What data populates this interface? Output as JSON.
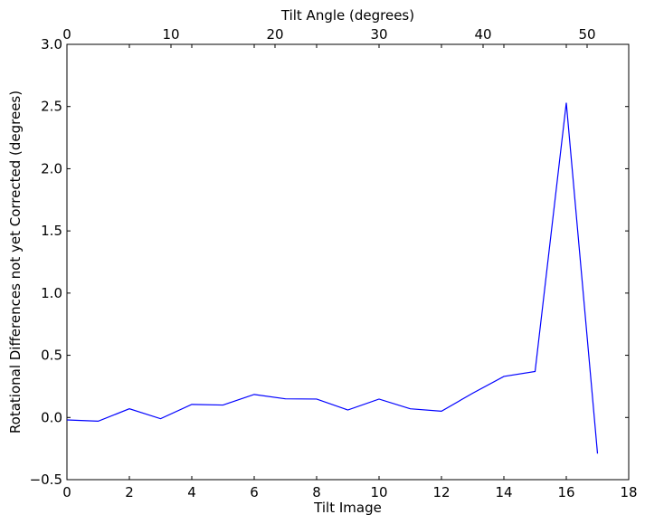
{
  "chart_data": {
    "type": "line",
    "xlabel": "Tilt Image",
    "x2label": "Tilt Angle (degrees)",
    "ylabel": "Rotational Differences not yet Corrected (degrees)",
    "xlim": [
      0,
      18
    ],
    "x2lim": [
      0,
      54
    ],
    "ylim": [
      -0.5,
      3.0
    ],
    "grid": false,
    "line_color": "#0000ff",
    "x_ticks": [
      0,
      2,
      4,
      6,
      8,
      10,
      12,
      14,
      16,
      18
    ],
    "x_tick_labels": [
      "0",
      "2",
      "4",
      "6",
      "8",
      "10",
      "12",
      "14",
      "16",
      "18"
    ],
    "x2_ticks": [
      0,
      10,
      20,
      30,
      40,
      50
    ],
    "x2_tick_labels": [
      "0",
      "10",
      "20",
      "30",
      "40",
      "50"
    ],
    "y_ticks": [
      -0.5,
      0.0,
      0.5,
      1.0,
      1.5,
      2.0,
      2.5,
      3.0
    ],
    "y_tick_labels": [
      "−0.5",
      "0.0",
      "0.5",
      "1.0",
      "1.5",
      "2.0",
      "2.5",
      "3.0"
    ],
    "series": [
      {
        "x": [
          0,
          1,
          2,
          3,
          4,
          5,
          6,
          7,
          8,
          9,
          10,
          11,
          12,
          13,
          14,
          15,
          16,
          17
        ],
        "values": [
          -0.02,
          -0.03,
          0.07,
          -0.01,
          0.105,
          0.1,
          0.185,
          0.15,
          0.148,
          0.06,
          0.148,
          0.07,
          0.05,
          0.195,
          0.33,
          0.37,
          2.53,
          -0.29
        ]
      }
    ]
  }
}
